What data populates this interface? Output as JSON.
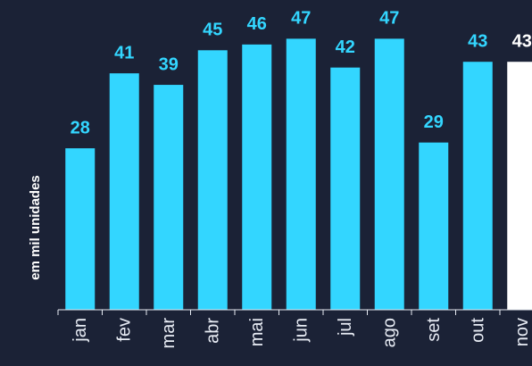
{
  "chart_data": {
    "type": "bar",
    "y_axis_label": "em mil unidades",
    "categories": [
      "jan",
      "fev",
      "mar",
      "abr",
      "mai",
      "jun",
      "jul",
      "ago",
      "set",
      "out",
      "nov"
    ],
    "values": [
      28,
      41,
      39,
      45,
      46,
      47,
      42,
      47,
      29,
      43,
      43
    ],
    "colors": [
      "#33d6ff",
      "#33d6ff",
      "#33d6ff",
      "#33d6ff",
      "#33d6ff",
      "#33d6ff",
      "#33d6ff",
      "#33d6ff",
      "#33d6ff",
      "#33d6ff",
      "#ffffff"
    ],
    "ylim": [
      0,
      50
    ]
  }
}
